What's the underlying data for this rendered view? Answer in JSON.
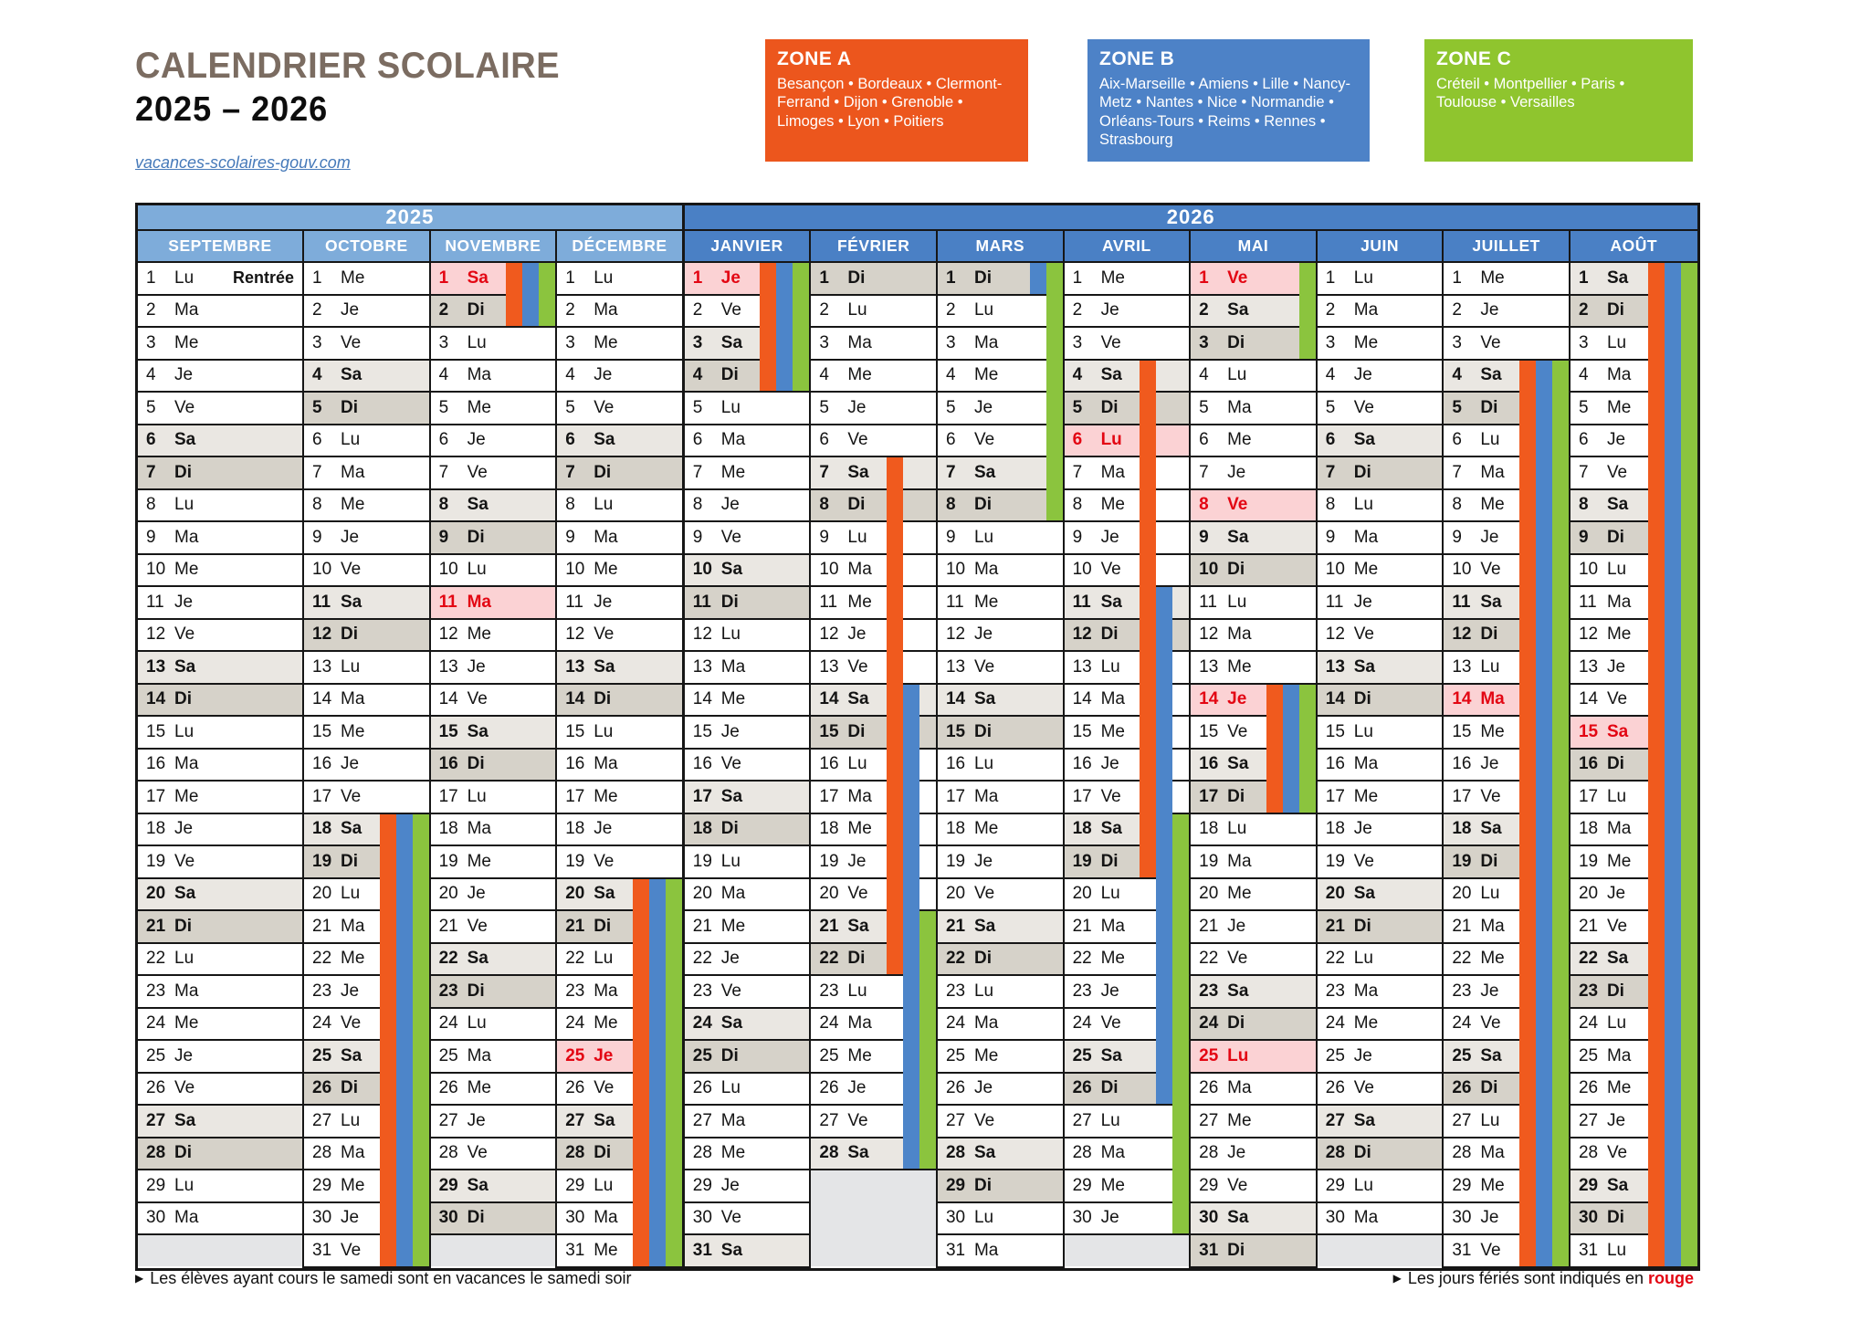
{
  "title": {
    "line1": "CALENDRIER SCOLAIRE",
    "line2": "2025 – 2026"
  },
  "link": "vacances-scolaires-gouv.com",
  "zones": [
    {
      "id": "A",
      "label": "ZONE A",
      "color": "#EC561D",
      "cities": "Besançon • Bordeaux • Clermont-Ferrand • Dijon • Grenoble • Limoges • Lyon • Poitiers"
    },
    {
      "id": "B",
      "label": "ZONE B",
      "color": "#4D82C7",
      "cities": "Aix-Marseille • Amiens • Lille • Nancy-Metz • Nantes • Nice • Normandie • Orléans-Tours • Reims • Rennes • Strasbourg"
    },
    {
      "id": "C",
      "label": "ZONE C",
      "color": "#8FC52E",
      "cities": "Créteil • Montpellier • Paris • Toulouse • Versailles"
    }
  ],
  "colors": {
    "year_2025_header": "#7EACDA",
    "year_2026_header": "#4A80C5",
    "stripe_a": "#F05A1E",
    "stripe_b": "#4D85C9",
    "stripe_c": "#8BC43E",
    "holiday_red": "#E30613",
    "holiday_pink": "#FBD2D4",
    "saturday_bg": "#EAE7E2",
    "sunday_bg": "#D6D2C9",
    "empty_bg": "#E4E5E7"
  },
  "weekday_labels": [
    "Lu",
    "Ma",
    "Me",
    "Je",
    "Ve",
    "Sa",
    "Di"
  ],
  "years": [
    {
      "label": "2025",
      "month_span": 4
    },
    {
      "label": "2026",
      "month_span": 8
    }
  ],
  "months": [
    {
      "name": "SEPTEMBRE",
      "days": 30,
      "first_weekday": 0,
      "holidays": [],
      "annotations": [
        {
          "day": 1,
          "text": "Rentrée"
        }
      ],
      "stripes": []
    },
    {
      "name": "OCTOBRE",
      "days": 31,
      "first_weekday": 2,
      "holidays": [],
      "annotations": [],
      "stripes": [
        {
          "zone": "A",
          "from": 18,
          "to": 31
        },
        {
          "zone": "B",
          "from": 18,
          "to": 31
        },
        {
          "zone": "C",
          "from": 18,
          "to": 31
        }
      ]
    },
    {
      "name": "NOVEMBRE",
      "days": 30,
      "first_weekday": 5,
      "holidays": [
        1,
        11
      ],
      "annotations": [],
      "stripes": [
        {
          "zone": "A",
          "from": 1,
          "to": 2
        },
        {
          "zone": "B",
          "from": 1,
          "to": 2
        },
        {
          "zone": "C",
          "from": 1,
          "to": 2
        }
      ]
    },
    {
      "name": "DÉCEMBRE",
      "days": 31,
      "first_weekday": 0,
      "holidays": [
        25
      ],
      "annotations": [],
      "stripes": [
        {
          "zone": "A",
          "from": 20,
          "to": 31
        },
        {
          "zone": "B",
          "from": 20,
          "to": 31
        },
        {
          "zone": "C",
          "from": 20,
          "to": 31
        }
      ]
    },
    {
      "name": "JANVIER",
      "days": 31,
      "first_weekday": 3,
      "holidays": [
        1
      ],
      "annotations": [],
      "stripes": [
        {
          "zone": "A",
          "from": 1,
          "to": 4
        },
        {
          "zone": "B",
          "from": 1,
          "to": 4
        },
        {
          "zone": "C",
          "from": 1,
          "to": 4
        }
      ]
    },
    {
      "name": "FÉVRIER",
      "days": 28,
      "first_weekday": 6,
      "holidays": [],
      "annotations": [],
      "stripes": [
        {
          "zone": "A",
          "from": 7,
          "to": 22
        },
        {
          "zone": "B",
          "from": 14,
          "to": 28
        },
        {
          "zone": "C",
          "from": 21,
          "to": 28
        }
      ]
    },
    {
      "name": "MARS",
      "days": 31,
      "first_weekday": 6,
      "holidays": [],
      "annotations": [],
      "stripes": [
        {
          "zone": "B",
          "from": 1,
          "to": 1
        },
        {
          "zone": "C",
          "from": 1,
          "to": 8
        }
      ]
    },
    {
      "name": "AVRIL",
      "days": 30,
      "first_weekday": 2,
      "holidays": [
        6
      ],
      "annotations": [],
      "stripes": [
        {
          "zone": "A",
          "from": 4,
          "to": 19
        },
        {
          "zone": "B",
          "from": 11,
          "to": 26
        },
        {
          "zone": "C",
          "from": 18,
          "to": 30
        }
      ]
    },
    {
      "name": "MAI",
      "days": 31,
      "first_weekday": 4,
      "holidays": [
        1,
        8,
        14,
        25
      ],
      "annotations": [],
      "stripes": [
        {
          "zone": "C",
          "from": 1,
          "to": 3
        },
        {
          "zone": "A",
          "from": 14,
          "to": 17
        },
        {
          "zone": "B",
          "from": 14,
          "to": 17
        },
        {
          "zone": "C",
          "from": 14,
          "to": 17
        }
      ]
    },
    {
      "name": "JUIN",
      "days": 30,
      "first_weekday": 0,
      "holidays": [],
      "annotations": [],
      "stripes": []
    },
    {
      "name": "JUILLET",
      "days": 31,
      "first_weekday": 2,
      "holidays": [
        14
      ],
      "annotations": [],
      "stripes": [
        {
          "zone": "A",
          "from": 4,
          "to": 31
        },
        {
          "zone": "B",
          "from": 4,
          "to": 31
        },
        {
          "zone": "C",
          "from": 4,
          "to": 31
        }
      ]
    },
    {
      "name": "AOÛT",
      "days": 31,
      "first_weekday": 5,
      "holidays": [
        15
      ],
      "annotations": [],
      "stripes": [
        {
          "zone": "A",
          "from": 1,
          "to": 31
        },
        {
          "zone": "B",
          "from": 1,
          "to": 31
        },
        {
          "zone": "C",
          "from": 1,
          "to": 31
        }
      ]
    }
  ],
  "icons": {
    "footnote_marker": "▶"
  },
  "footnotes": {
    "left": "Les élèves ayant cours le samedi sont en vacances le samedi soir",
    "right_prefix": "Les jours fériés sont indiqués en ",
    "right_highlight": "rouge"
  }
}
